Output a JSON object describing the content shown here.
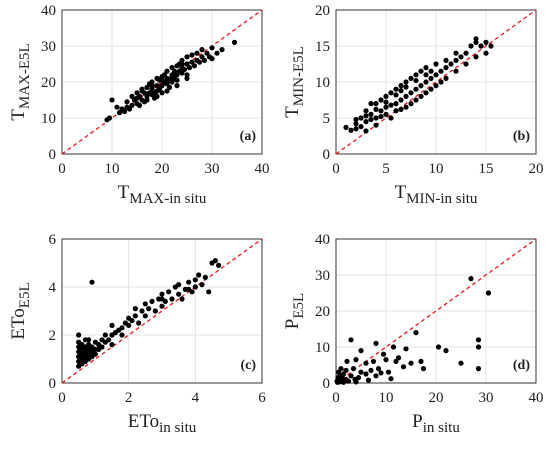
{
  "chart_data": [
    {
      "type": "scatter",
      "panel_label": "(a)",
      "xlabel": {
        "main": "T",
        "sub": "MAX-in situ"
      },
      "ylabel": {
        "main": "T",
        "sub": "MAX-E5L"
      },
      "xlim": [
        0,
        40
      ],
      "ylim": [
        0,
        40
      ],
      "xticks": [
        "0",
        "10",
        "20",
        "30",
        "40"
      ],
      "yticks": [
        "0",
        "10",
        "20",
        "30",
        "40"
      ],
      "grid": true,
      "reference_line": "1:1",
      "points": [
        [
          9,
          9.5
        ],
        [
          9.5,
          10
        ],
        [
          10,
          15
        ],
        [
          11,
          13
        ],
        [
          11.5,
          11.5
        ],
        [
          12,
          12.5
        ],
        [
          12.5,
          11.8
        ],
        [
          13,
          13
        ],
        [
          13,
          14.5
        ],
        [
          13.5,
          12.5
        ],
        [
          14,
          16
        ],
        [
          14,
          13.5
        ],
        [
          14.5,
          15
        ],
        [
          15,
          14
        ],
        [
          15,
          17
        ],
        [
          15.5,
          13.5
        ],
        [
          15.5,
          16
        ],
        [
          16,
          15
        ],
        [
          16,
          18
        ],
        [
          16.5,
          14.5
        ],
        [
          16.5,
          17
        ],
        [
          17,
          16
        ],
        [
          17,
          18.5
        ],
        [
          17,
          15
        ],
        [
          17.5,
          17
        ],
        [
          17.5,
          19.5
        ],
        [
          18,
          16.5
        ],
        [
          18,
          18
        ],
        [
          18,
          20
        ],
        [
          18.5,
          17
        ],
        [
          18.5,
          15.5
        ],
        [
          19,
          19
        ],
        [
          19,
          21
        ],
        [
          19,
          17.5
        ],
        [
          19.5,
          18
        ],
        [
          19.5,
          20.5
        ],
        [
          20,
          19
        ],
        [
          20,
          21.5
        ],
        [
          20,
          17
        ],
        [
          20.5,
          20
        ],
        [
          20.5,
          22
        ],
        [
          21,
          19.5
        ],
        [
          21,
          21
        ],
        [
          21,
          23
        ],
        [
          21.5,
          20.5
        ],
        [
          21.5,
          18.5
        ],
        [
          22,
          22
        ],
        [
          22,
          24
        ],
        [
          22,
          20
        ],
        [
          22.5,
          21
        ],
        [
          22.5,
          23
        ],
        [
          23,
          22
        ],
        [
          23,
          24.5
        ],
        [
          23,
          20.5
        ],
        [
          23.5,
          23
        ],
        [
          23.5,
          25
        ],
        [
          24,
          22.5
        ],
        [
          24,
          24
        ],
        [
          24,
          26
        ],
        [
          24.5,
          23.5
        ],
        [
          25,
          25
        ],
        [
          25,
          22
        ],
        [
          25,
          27
        ],
        [
          25.5,
          24
        ],
        [
          26,
          25.5
        ],
        [
          26,
          27.5
        ],
        [
          26.5,
          24.5
        ],
        [
          27,
          26
        ],
        [
          27,
          28
        ],
        [
          27.5,
          25.5
        ],
        [
          28,
          27
        ],
        [
          28,
          29
        ],
        [
          28.5,
          26
        ],
        [
          29,
          28
        ],
        [
          29.5,
          27
        ],
        [
          30,
          29.5
        ],
        [
          30,
          26.5
        ],
        [
          31,
          28
        ],
        [
          32,
          29
        ],
        [
          34.5,
          31
        ],
        [
          16,
          17.5
        ],
        [
          18,
          19
        ],
        [
          20,
          20.5
        ],
        [
          22,
          21.5
        ],
        [
          24,
          25
        ],
        [
          19,
          16
        ],
        [
          21,
          17.5
        ],
        [
          23,
          19
        ],
        [
          25,
          21
        ],
        [
          15,
          15.5
        ]
      ]
    },
    {
      "type": "scatter",
      "panel_label": "(b)",
      "xlabel": {
        "main": "T",
        "sub": "MIN-in situ"
      },
      "ylabel": {
        "main": "T",
        "sub": "MIN-E5L"
      },
      "xlim": [
        0,
        20
      ],
      "ylim": [
        0,
        20
      ],
      "xticks": [
        "0",
        "5",
        "10",
        "15",
        "20"
      ],
      "yticks": [
        "0",
        "5",
        "10",
        "15",
        "20"
      ],
      "grid": true,
      "reference_line": "1:1",
      "points": [
        [
          1,
          3.7
        ],
        [
          1.5,
          3.3
        ],
        [
          2,
          3.5
        ],
        [
          2,
          4.2
        ],
        [
          2.5,
          3.8
        ],
        [
          2.5,
          5
        ],
        [
          3,
          4.5
        ],
        [
          3,
          3.2
        ],
        [
          3,
          6
        ],
        [
          3.5,
          4.8
        ],
        [
          3.5,
          5.5
        ],
        [
          3.5,
          7
        ],
        [
          4,
          5
        ],
        [
          4,
          6.2
        ],
        [
          4,
          4
        ],
        [
          4.5,
          6
        ],
        [
          4.5,
          7.5
        ],
        [
          4.5,
          5.2
        ],
        [
          5,
          6.5
        ],
        [
          5,
          8
        ],
        [
          5,
          5.5
        ],
        [
          5.5,
          6.8
        ],
        [
          5.5,
          8.5
        ],
        [
          5.5,
          5
        ],
        [
          6,
          7
        ],
        [
          6,
          9
        ],
        [
          6,
          6
        ],
        [
          6.5,
          7.5
        ],
        [
          6.5,
          9.5
        ],
        [
          6.5,
          6.2
        ],
        [
          7,
          8
        ],
        [
          7,
          10
        ],
        [
          7,
          6.5
        ],
        [
          7.5,
          8.5
        ],
        [
          7.5,
          7
        ],
        [
          7.5,
          10.5
        ],
        [
          8,
          9
        ],
        [
          8,
          11
        ],
        [
          8,
          7.5
        ],
        [
          8.5,
          9.5
        ],
        [
          8.5,
          11.5
        ],
        [
          8.5,
          8
        ],
        [
          9,
          10
        ],
        [
          9,
          8.5
        ],
        [
          9,
          12
        ],
        [
          9.5,
          10.5
        ],
        [
          9.5,
          9
        ],
        [
          9.5,
          11.5
        ],
        [
          10,
          11
        ],
        [
          10,
          9.5
        ],
        [
          10,
          12.5
        ],
        [
          10.5,
          11.5
        ],
        [
          10.5,
          10
        ],
        [
          11,
          12
        ],
        [
          11,
          10.5
        ],
        [
          11,
          13
        ],
        [
          11.5,
          12.5
        ],
        [
          12,
          13
        ],
        [
          12,
          11.5
        ],
        [
          12,
          14
        ],
        [
          12.5,
          13.5
        ],
        [
          13,
          14
        ],
        [
          13,
          12.5
        ],
        [
          13.5,
          15
        ],
        [
          14,
          15.5
        ],
        [
          14,
          13.5
        ],
        [
          14.5,
          15
        ],
        [
          15,
          15.5
        ],
        [
          15,
          14
        ],
        [
          15.5,
          15
        ],
        [
          14,
          16
        ],
        [
          6,
          8.2
        ],
        [
          7,
          9.3
        ],
        [
          8,
          10.2
        ],
        [
          9,
          11
        ],
        [
          4,
          7
        ],
        [
          5,
          7.2
        ],
        [
          3,
          5.3
        ],
        [
          2,
          4.8
        ],
        [
          6.5,
          8.8
        ]
      ]
    },
    {
      "type": "scatter",
      "panel_label": "(c)",
      "xlabel": {
        "main": "ETo",
        "sub": "in situ"
      },
      "ylabel": {
        "main": "ETo",
        "sub": "E5L"
      },
      "xlim": [
        0,
        6
      ],
      "ylim": [
        0,
        6
      ],
      "xticks": [
        "0",
        "2",
        "4",
        "6"
      ],
      "yticks": [
        "0",
        "2",
        "4",
        "6"
      ],
      "grid": true,
      "reference_line": "1:1",
      "points": [
        [
          0.5,
          0.7
        ],
        [
          0.5,
          0.9
        ],
        [
          0.5,
          1.1
        ],
        [
          0.5,
          1.3
        ],
        [
          0.5,
          1.5
        ],
        [
          0.5,
          1.7
        ],
        [
          0.5,
          2
        ],
        [
          0.6,
          0.8
        ],
        [
          0.6,
          1
        ],
        [
          0.6,
          1.2
        ],
        [
          0.6,
          1.4
        ],
        [
          0.6,
          1.6
        ],
        [
          0.7,
          0.9
        ],
        [
          0.7,
          1.1
        ],
        [
          0.7,
          1.3
        ],
        [
          0.7,
          1.5
        ],
        [
          0.7,
          1.8
        ],
        [
          0.8,
          1
        ],
        [
          0.8,
          1.2
        ],
        [
          0.8,
          1.4
        ],
        [
          0.8,
          1.6
        ],
        [
          0.9,
          1.1
        ],
        [
          0.9,
          1.3
        ],
        [
          0.9,
          1.5
        ],
        [
          1,
          1.2
        ],
        [
          1,
          1.4
        ],
        [
          1,
          1.7
        ],
        [
          1.1,
          1.4
        ],
        [
          1.2,
          1.5
        ],
        [
          1.2,
          1.8
        ],
        [
          1.3,
          1.7
        ],
        [
          1.3,
          2
        ],
        [
          1.4,
          1.8
        ],
        [
          1.5,
          2
        ],
        [
          1.5,
          1.6
        ],
        [
          1.6,
          2.1
        ],
        [
          1.7,
          2.2
        ],
        [
          1.8,
          2.3
        ],
        [
          1.8,
          2
        ],
        [
          1.9,
          2.5
        ],
        [
          2,
          2.4
        ],
        [
          2,
          2.7
        ],
        [
          2.1,
          2.6
        ],
        [
          2.2,
          2.8
        ],
        [
          2.3,
          2.5
        ],
        [
          2.4,
          3
        ],
        [
          2.5,
          2.8
        ],
        [
          2.5,
          3.3
        ],
        [
          2.6,
          3.1
        ],
        [
          2.7,
          3.4
        ],
        [
          2.8,
          3
        ],
        [
          2.9,
          3.5
        ],
        [
          3,
          3.2
        ],
        [
          3,
          3.7
        ],
        [
          3.1,
          3.4
        ],
        [
          3.2,
          3.8
        ],
        [
          3.3,
          3.5
        ],
        [
          3.4,
          4
        ],
        [
          3.5,
          3.7
        ],
        [
          3.5,
          4.1
        ],
        [
          3.6,
          3.5
        ],
        [
          3.7,
          3.9
        ],
        [
          3.8,
          4.2
        ],
        [
          3.9,
          3.8
        ],
        [
          4,
          4.3
        ],
        [
          4,
          4
        ],
        [
          4.1,
          4.5
        ],
        [
          4.2,
          4.1
        ],
        [
          4.3,
          4.4
        ],
        [
          4.4,
          3.8
        ],
        [
          4.5,
          5
        ],
        [
          4.6,
          5.1
        ],
        [
          4.7,
          4.9
        ],
        [
          0.9,
          4.2
        ],
        [
          1.5,
          2.4
        ],
        [
          2.2,
          3.1
        ],
        [
          3,
          3.5
        ],
        [
          3.8,
          3.9
        ],
        [
          1.1,
          1.6
        ],
        [
          0.8,
          1.8
        ]
      ]
    },
    {
      "type": "scatter",
      "panel_label": "(d)",
      "xlabel": {
        "main": "P",
        "sub": "in situ"
      },
      "ylabel": {
        "main": "P",
        "sub": "E5L"
      },
      "xlim": [
        0,
        40
      ],
      "ylim": [
        0,
        40
      ],
      "xticks": [
        "0",
        "10",
        "20",
        "30",
        "40"
      ],
      "yticks": [
        "0",
        "10",
        "20",
        "30",
        "40"
      ],
      "grid": true,
      "reference_line": "1:1",
      "points": [
        [
          0.2,
          0.5
        ],
        [
          0.4,
          1.5
        ],
        [
          0.5,
          3
        ],
        [
          0.7,
          0.3
        ],
        [
          0.8,
          2
        ],
        [
          1,
          4
        ],
        [
          1,
          0.8
        ],
        [
          1.2,
          1.2
        ],
        [
          1.5,
          2.5
        ],
        [
          1.5,
          0.2
        ],
        [
          2,
          1
        ],
        [
          2,
          3.5
        ],
        [
          2.2,
          6
        ],
        [
          2.5,
          0.5
        ],
        [
          3,
          2
        ],
        [
          3,
          12
        ],
        [
          3.5,
          4
        ],
        [
          4,
          0.3
        ],
        [
          4,
          6.5
        ],
        [
          4.5,
          1.5
        ],
        [
          5,
          3
        ],
        [
          5,
          9
        ],
        [
          6,
          5.5
        ],
        [
          6.5,
          0.8
        ],
        [
          7,
          3.5
        ],
        [
          7.5,
          6
        ],
        [
          8,
          2
        ],
        [
          8,
          11
        ],
        [
          8.5,
          4
        ],
        [
          9,
          2.8
        ],
        [
          10,
          6.5
        ],
        [
          10.5,
          3
        ],
        [
          11,
          1.2
        ],
        [
          11.5,
          10
        ],
        [
          12.5,
          7
        ],
        [
          13.5,
          4.5
        ],
        [
          15,
          5.5
        ],
        [
          16,
          14
        ],
        [
          17,
          6
        ],
        [
          17.5,
          4
        ],
        [
          20.5,
          10
        ],
        [
          22,
          9
        ],
        [
          25,
          5.5
        ],
        [
          27,
          29
        ],
        [
          28.5,
          12
        ],
        [
          28.5,
          10
        ],
        [
          28.5,
          4
        ],
        [
          30.5,
          25
        ],
        [
          1.8,
          0.6
        ],
        [
          0.3,
          0.2
        ],
        [
          3.8,
          1
        ],
        [
          6,
          2.5
        ],
        [
          9.5,
          8
        ],
        [
          12,
          6
        ],
        [
          14,
          9.5
        ]
      ]
    }
  ]
}
